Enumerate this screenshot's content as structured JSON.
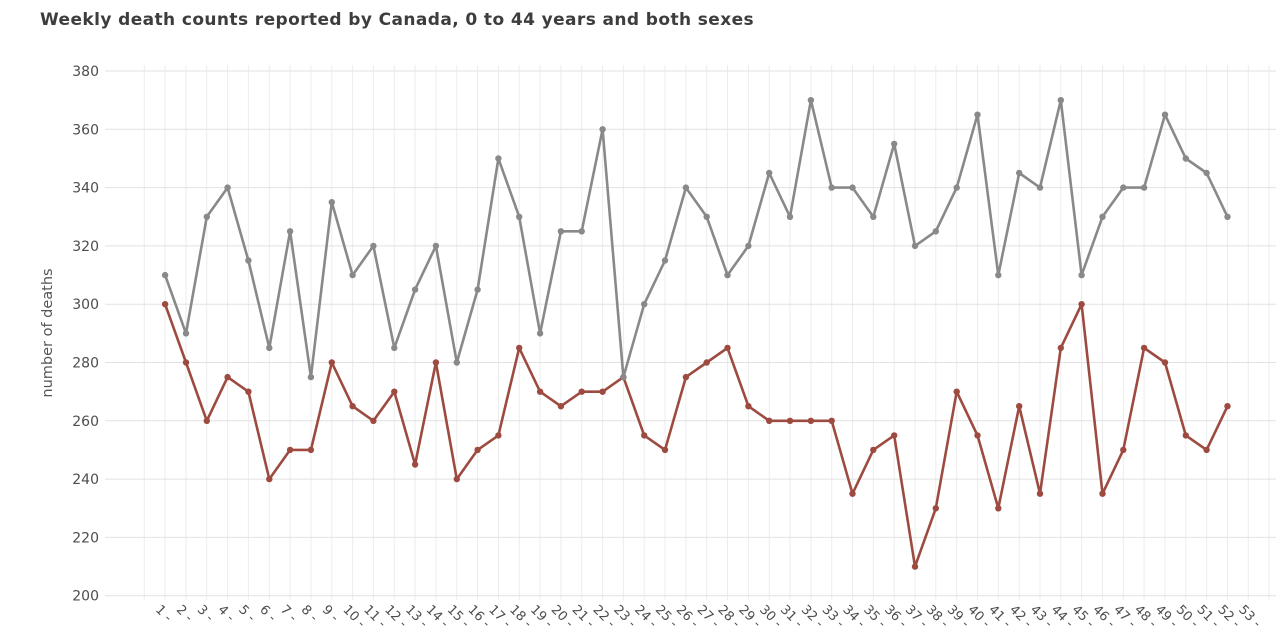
{
  "chart_data": {
    "type": "line",
    "title": "Weekly death counts reported by Canada, 0 to 44 years and both sexes",
    "ylabel": "number of deaths",
    "xlabel": "",
    "ylim": [
      200,
      380
    ],
    "yticks": [
      380,
      360,
      340,
      320,
      300,
      280,
      260,
      240,
      220,
      200
    ],
    "grid": true,
    "legend": "none",
    "marker": "circle",
    "categories": [
      "1 -",
      "2 -",
      "3 -",
      "4 -",
      "5 -",
      "6 -",
      "7 -",
      "8 -",
      "9 -",
      "10 -",
      "11 -",
      "12 -",
      "13 -",
      "14 -",
      "15 -",
      "16 -",
      "17 -",
      "18 -",
      "19 -",
      "20 -",
      "21 -",
      "22 -",
      "23 -",
      "24 -",
      "25 -",
      "26 -",
      "27 -",
      "28 -",
      "29 -",
      "30 -",
      "31 -",
      "32 -",
      "33 -",
      "34 -",
      "35 -",
      "36 -",
      "37 -",
      "38 -",
      "39 -",
      "40 -",
      "41 -",
      "42 -",
      "43 -",
      "44 -",
      "45 -",
      "46 -",
      "47 -",
      "48 -",
      "49 -",
      "50 -",
      "51 -",
      "52 -",
      "53 -"
    ],
    "series": [
      {
        "name": "red-series",
        "color": "#9d4b40",
        "values": [
          300,
          280,
          260,
          275,
          270,
          240,
          250,
          250,
          280,
          265,
          260,
          270,
          245,
          280,
          240,
          250,
          255,
          285,
          270,
          265,
          270,
          270,
          275,
          255,
          250,
          275,
          280,
          285,
          265,
          260,
          260,
          260,
          260,
          235,
          250,
          255,
          210,
          230,
          270,
          255,
          230,
          265,
          235,
          285,
          300,
          235,
          250,
          285,
          280,
          255,
          250,
          265
        ]
      },
      {
        "name": "gray-series",
        "color": "#898989",
        "values": [
          310,
          290,
          330,
          340,
          315,
          285,
          325,
          275,
          335,
          310,
          320,
          285,
          305,
          320,
          280,
          305,
          350,
          330,
          290,
          325,
          325,
          360,
          275,
          300,
          315,
          340,
          330,
          310,
          320,
          345,
          330,
          370,
          340,
          340,
          330,
          355,
          320,
          325,
          340,
          365,
          310,
          345,
          340,
          370,
          310,
          330,
          340,
          340,
          365,
          350,
          345,
          330
        ]
      }
    ],
    "colors": {
      "background": "#ffffff",
      "grid_horizontal": "#e2e2e2",
      "grid_vertical": "#ececec",
      "title_text": "#3d3d3d",
      "axis_text": "#4d4d4d"
    }
  }
}
